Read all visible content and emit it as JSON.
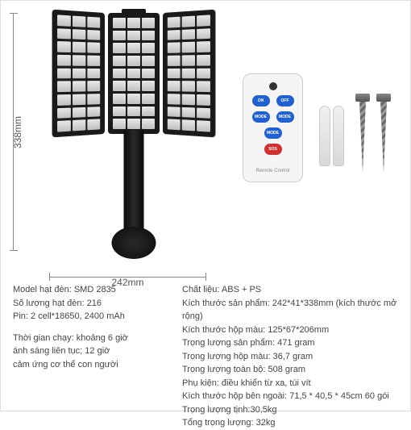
{
  "dimensions": {
    "height": "338mm",
    "width": "242mm"
  },
  "remote": {
    "buttons": [
      "ON",
      "OFF",
      "MODE",
      "MODE",
      "MODE",
      "SOS"
    ],
    "label": "Remote Control"
  },
  "specs_left": {
    "block1": [
      "Model hạt đèn: SMD 2835",
      "Số lượng hạt đèn: 216",
      "Pin: 2 cell*18650, 2400 mAh"
    ],
    "block2": [
      "Thời gian chạy: khoảng 6 giờ",
      "ánh sáng liên tục; 12 giờ",
      "cảm ứng cơ thể con người"
    ]
  },
  "specs_right": [
    "Chất liệu: ABS + PS",
    "Kích thước sản phẩm: 242*41*338mm (kích thước mở rộng)",
    "Kích thước hộp màu: 125*67*206mm",
    "Trọng lượng sản phẩm: 471 gram",
    "Trọng lượng hộp màu: 36,7 gram",
    "Trọng lượng toàn bộ: 508 gram",
    "Phụ kiện: điều khiển từ xa, túi vít",
    "Kích thước hộp bên ngoài: 71,5 * 40,5 * 45cm 60 gói",
    "Trọng lượng tịnh:30,5kg",
    "Tổng trọng lượng: 32kg"
  ]
}
